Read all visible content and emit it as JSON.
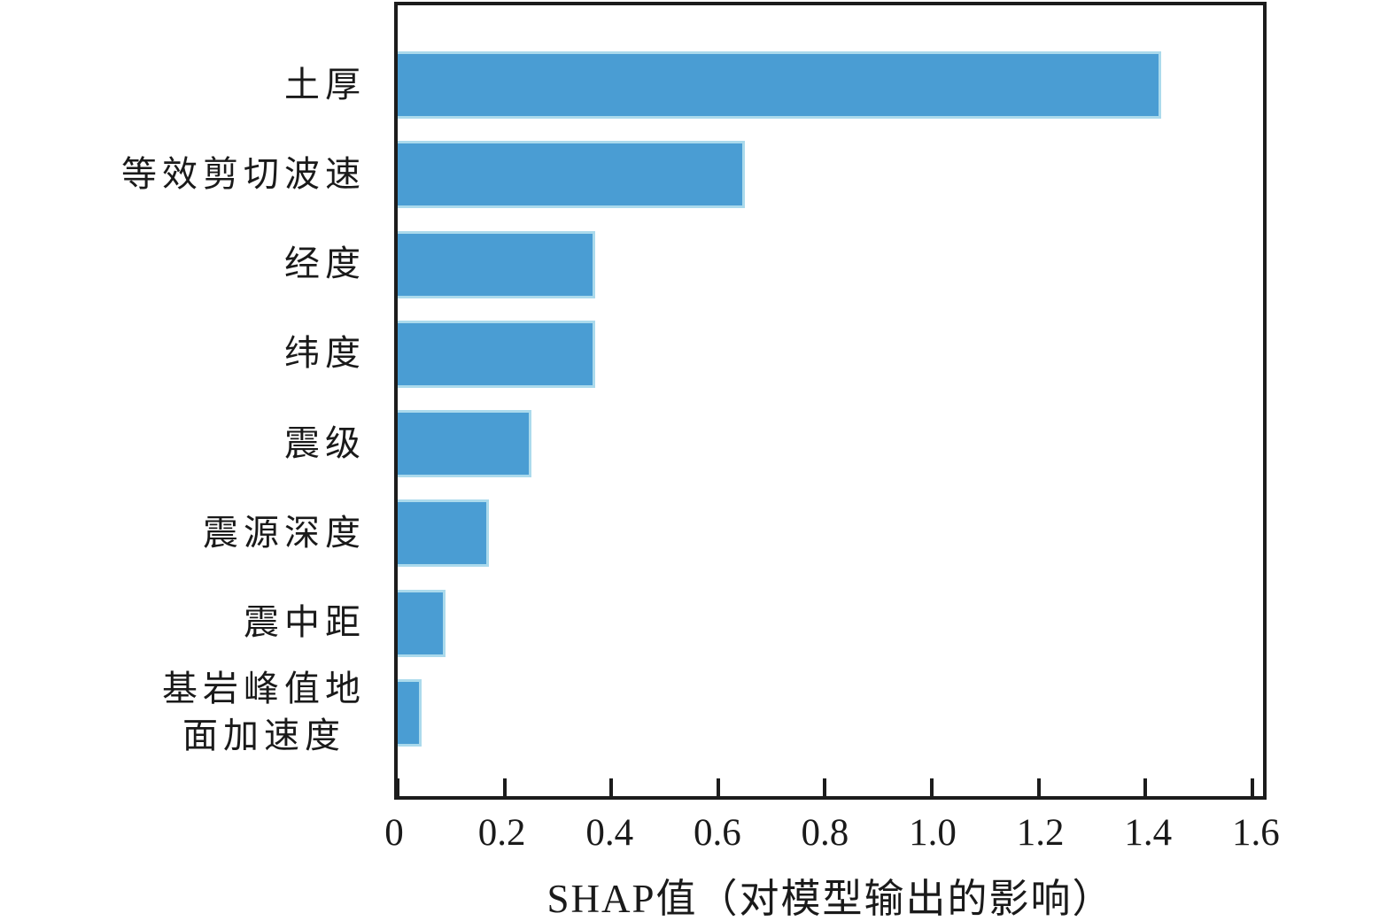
{
  "chart_data": {
    "type": "bar",
    "orientation": "horizontal",
    "title": "",
    "categories": [
      "土厚",
      "等效剪切波速",
      "经度",
      "纬度",
      "震级",
      "震源深度",
      "震中距",
      "基岩峰值地\n面加速度"
    ],
    "values": [
      1.43,
      0.65,
      0.37,
      0.37,
      0.25,
      0.17,
      0.09,
      0.045
    ],
    "xlabel": "SHAP值（对模型输出的影响）",
    "ylabel": "",
    "xticks": [
      0,
      0.2,
      0.4,
      0.6,
      0.8,
      1.0,
      1.2,
      1.4,
      1.6
    ],
    "xtick_labels": [
      "0",
      "0.2",
      "0.4",
      "0.6",
      "0.8",
      "1.0",
      "1.2",
      "1.4",
      "1.6"
    ],
    "xlim": [
      0,
      1.62
    ],
    "grid": false,
    "legend": null,
    "bar_color": "#4a9dd3",
    "bar_edge_color": "#abdaec",
    "axis_color": "#1c1c1c"
  }
}
